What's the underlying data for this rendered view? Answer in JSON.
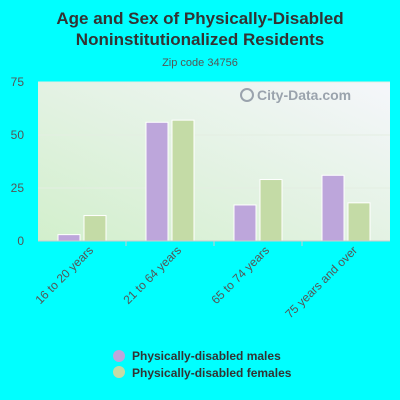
{
  "chart_data": {
    "type": "bar",
    "title_lines": [
      "Age and Sex of Physically-Disabled",
      "Noninstitutionalized Residents"
    ],
    "subtitle": "Zip code 34756",
    "categories": [
      "16 to 20 years",
      "21 to 64 years",
      "65 to 74 years",
      "75 years and over"
    ],
    "series": [
      {
        "name": "Physically-disabled males",
        "values": [
          3,
          56,
          17,
          31
        ],
        "color": "#bda6db"
      },
      {
        "name": "Physically-disabled females",
        "values": [
          12,
          57,
          29,
          18
        ],
        "color": "#c4dba6"
      }
    ],
    "ylim": [
      0,
      75
    ],
    "yticks": [
      0,
      25,
      50,
      75
    ],
    "grid": true,
    "legend_position": "bottom",
    "xlabel": "",
    "ylabel": ""
  },
  "watermark": {
    "text": "City-Data.com",
    "icon": "magnifier-icon"
  },
  "colors": {
    "background": "#00ffff",
    "plot_top": "#f4f6fb",
    "plot_bottom": "#d4f0d0"
  }
}
